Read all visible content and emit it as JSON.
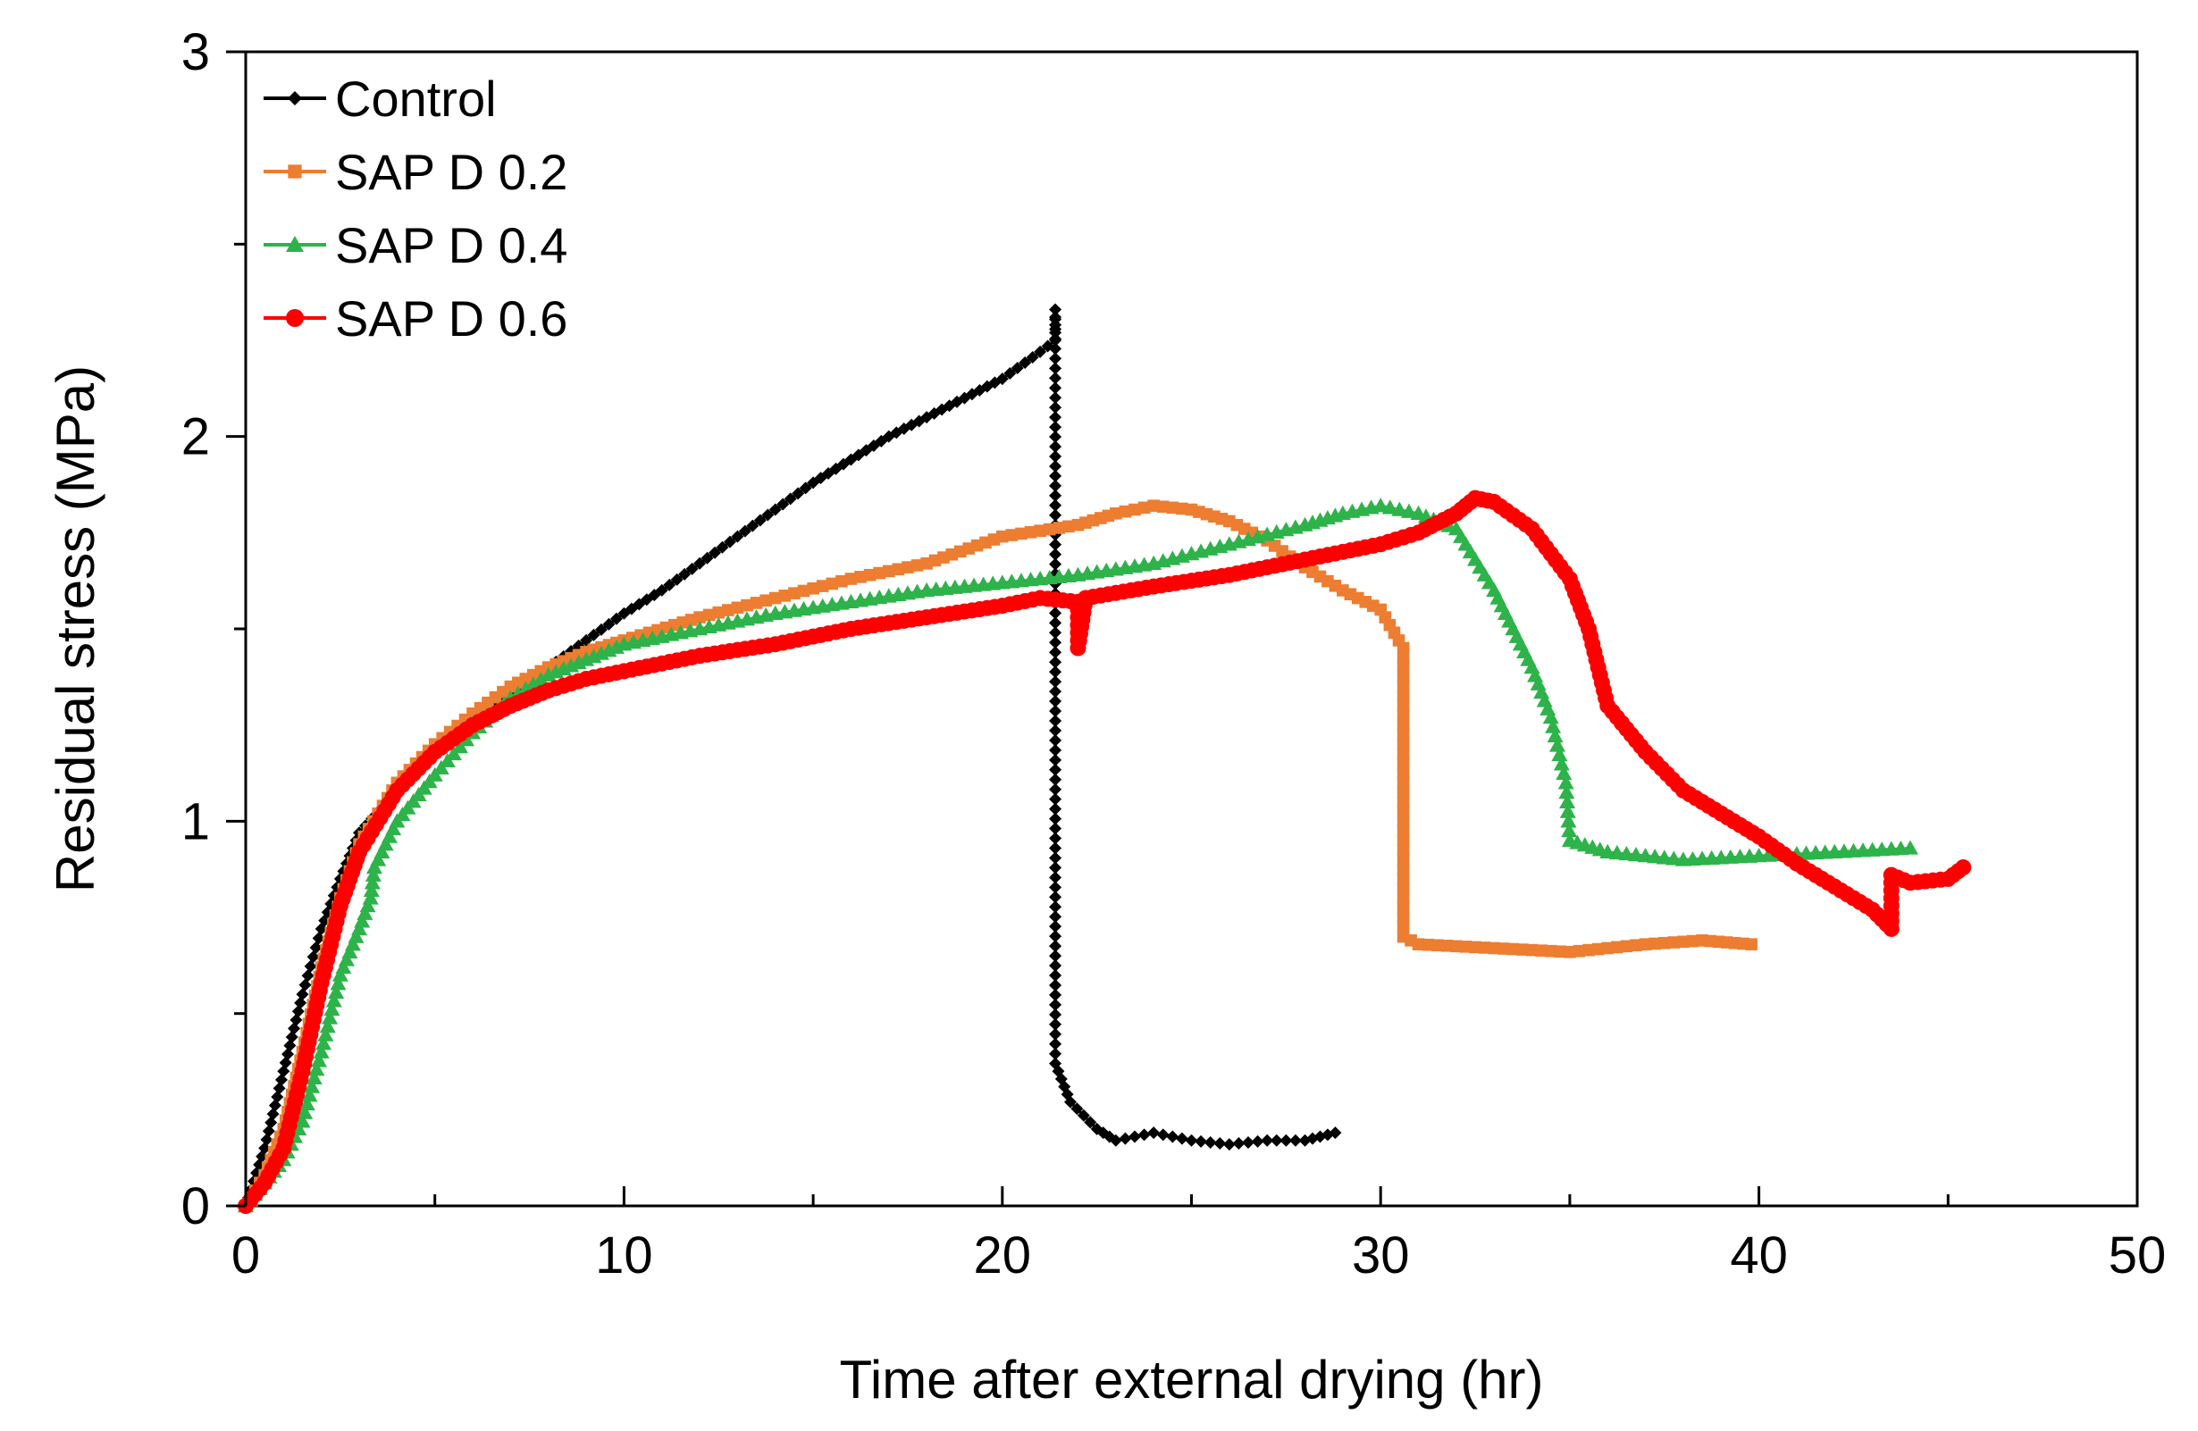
{
  "chart_data": {
    "type": "line",
    "title": "",
    "xlabel": "Time after external drying (hr)",
    "ylabel": "Residual stress (MPa)",
    "xlim": [
      0,
      50
    ],
    "ylim": [
      0,
      3
    ],
    "x_ticks": [
      0,
      10,
      20,
      30,
      40,
      50
    ],
    "y_ticks": [
      0,
      1,
      2,
      3
    ],
    "x_minor_step": 5,
    "y_minor_step": 0.5,
    "grid": false,
    "legend_position": "top-left",
    "series": [
      {
        "name": "Control",
        "color": "#000000",
        "marker": "diamond",
        "points": [
          [
            0,
            0
          ],
          [
            0.5,
            0.15
          ],
          [
            1,
            0.35
          ],
          [
            1.5,
            0.55
          ],
          [
            2,
            0.72
          ],
          [
            2.5,
            0.85
          ],
          [
            3,
            0.97
          ],
          [
            4,
            1.08
          ],
          [
            5,
            1.18
          ],
          [
            6,
            1.26
          ],
          [
            7,
            1.33
          ],
          [
            8,
            1.4
          ],
          [
            9,
            1.47
          ],
          [
            10,
            1.54
          ],
          [
            11,
            1.6
          ],
          [
            12,
            1.67
          ],
          [
            13,
            1.74
          ],
          [
            14,
            1.81
          ],
          [
            15,
            1.88
          ],
          [
            16,
            1.94
          ],
          [
            17,
            2.0
          ],
          [
            18,
            2.05
          ],
          [
            19,
            2.1
          ],
          [
            20,
            2.15
          ],
          [
            21,
            2.22
          ],
          [
            21.4,
            2.25
          ],
          [
            21.4,
            2.33
          ],
          [
            21.4,
            0.37
          ],
          [
            21.8,
            0.27
          ],
          [
            22.5,
            0.2
          ],
          [
            23,
            0.17
          ],
          [
            24,
            0.19
          ],
          [
            25,
            0.17
          ],
          [
            26,
            0.16
          ],
          [
            27,
            0.17
          ],
          [
            28,
            0.17
          ],
          [
            28.8,
            0.19
          ]
        ]
      },
      {
        "name": "SAP D 0.2",
        "color": "#ED7D31",
        "marker": "square",
        "points": [
          [
            0,
            0
          ],
          [
            0.5,
            0.08
          ],
          [
            1,
            0.2
          ],
          [
            1.5,
            0.4
          ],
          [
            2,
            0.62
          ],
          [
            2.5,
            0.8
          ],
          [
            3,
            0.94
          ],
          [
            4,
            1.1
          ],
          [
            5,
            1.2
          ],
          [
            6,
            1.28
          ],
          [
            7,
            1.35
          ],
          [
            8,
            1.4
          ],
          [
            9,
            1.44
          ],
          [
            10,
            1.47
          ],
          [
            12,
            1.53
          ],
          [
            14,
            1.58
          ],
          [
            16,
            1.63
          ],
          [
            18,
            1.67
          ],
          [
            20,
            1.74
          ],
          [
            22,
            1.77
          ],
          [
            23,
            1.8
          ],
          [
            24,
            1.82
          ],
          [
            25,
            1.81
          ],
          [
            26,
            1.78
          ],
          [
            27,
            1.73
          ],
          [
            28,
            1.66
          ],
          [
            29,
            1.6
          ],
          [
            30,
            1.55
          ],
          [
            30.6,
            1.45
          ],
          [
            30.6,
            0.7
          ],
          [
            31,
            0.68
          ],
          [
            33,
            0.67
          ],
          [
            35,
            0.66
          ],
          [
            37,
            0.68
          ],
          [
            38.5,
            0.69
          ],
          [
            39.8,
            0.68
          ]
        ]
      },
      {
        "name": "SAP D 0.4",
        "color": "#2DB34A",
        "marker": "triangle",
        "points": [
          [
            0,
            0
          ],
          [
            0.5,
            0.06
          ],
          [
            1,
            0.12
          ],
          [
            1.5,
            0.22
          ],
          [
            2,
            0.4
          ],
          [
            2.5,
            0.6
          ],
          [
            3,
            0.72
          ],
          [
            3.3,
            0.8
          ],
          [
            3.4,
            0.88
          ],
          [
            4,
            1.0
          ],
          [
            5,
            1.12
          ],
          [
            6,
            1.23
          ],
          [
            7,
            1.32
          ],
          [
            8,
            1.38
          ],
          [
            9,
            1.42
          ],
          [
            10,
            1.46
          ],
          [
            12,
            1.5
          ],
          [
            14,
            1.54
          ],
          [
            16,
            1.57
          ],
          [
            18,
            1.6
          ],
          [
            20,
            1.62
          ],
          [
            22,
            1.64
          ],
          [
            24,
            1.67
          ],
          [
            26,
            1.72
          ],
          [
            28,
            1.77
          ],
          [
            29,
            1.8
          ],
          [
            30,
            1.82
          ],
          [
            31,
            1.8
          ],
          [
            32,
            1.76
          ],
          [
            33,
            1.6
          ],
          [
            33.5,
            1.5
          ],
          [
            34,
            1.4
          ],
          [
            34.5,
            1.27
          ],
          [
            34.9,
            1.1
          ],
          [
            35,
            0.95
          ],
          [
            36,
            0.92
          ],
          [
            38,
            0.9
          ],
          [
            40,
            0.91
          ],
          [
            42,
            0.92
          ],
          [
            44,
            0.93
          ]
        ]
      },
      {
        "name": "SAP D 0.6",
        "color": "#FF0000",
        "marker": "circle",
        "points": [
          [
            0,
            0
          ],
          [
            0.5,
            0.06
          ],
          [
            1,
            0.15
          ],
          [
            1.5,
            0.35
          ],
          [
            2,
            0.58
          ],
          [
            2.5,
            0.78
          ],
          [
            3,
            0.92
          ],
          [
            4,
            1.08
          ],
          [
            5,
            1.18
          ],
          [
            6,
            1.25
          ],
          [
            7,
            1.3
          ],
          [
            8,
            1.34
          ],
          [
            9,
            1.37
          ],
          [
            10,
            1.39
          ],
          [
            12,
            1.43
          ],
          [
            14,
            1.46
          ],
          [
            16,
            1.5
          ],
          [
            18,
            1.53
          ],
          [
            20,
            1.56
          ],
          [
            21,
            1.58
          ],
          [
            22,
            1.57
          ],
          [
            22,
            1.45
          ],
          [
            22.2,
            1.58
          ],
          [
            24,
            1.61
          ],
          [
            26,
            1.64
          ],
          [
            28,
            1.68
          ],
          [
            30,
            1.72
          ],
          [
            31,
            1.75
          ],
          [
            32,
            1.8
          ],
          [
            32.5,
            1.84
          ],
          [
            33,
            1.83
          ],
          [
            34,
            1.76
          ],
          [
            35,
            1.63
          ],
          [
            35.5,
            1.5
          ],
          [
            36,
            1.3
          ],
          [
            37,
            1.18
          ],
          [
            38,
            1.08
          ],
          [
            39,
            1.02
          ],
          [
            40,
            0.96
          ],
          [
            41,
            0.89
          ],
          [
            42,
            0.83
          ],
          [
            43,
            0.77
          ],
          [
            43.5,
            0.72
          ],
          [
            43.5,
            0.86
          ],
          [
            44,
            0.84
          ],
          [
            45,
            0.85
          ],
          [
            45.4,
            0.88
          ]
        ]
      }
    ]
  }
}
